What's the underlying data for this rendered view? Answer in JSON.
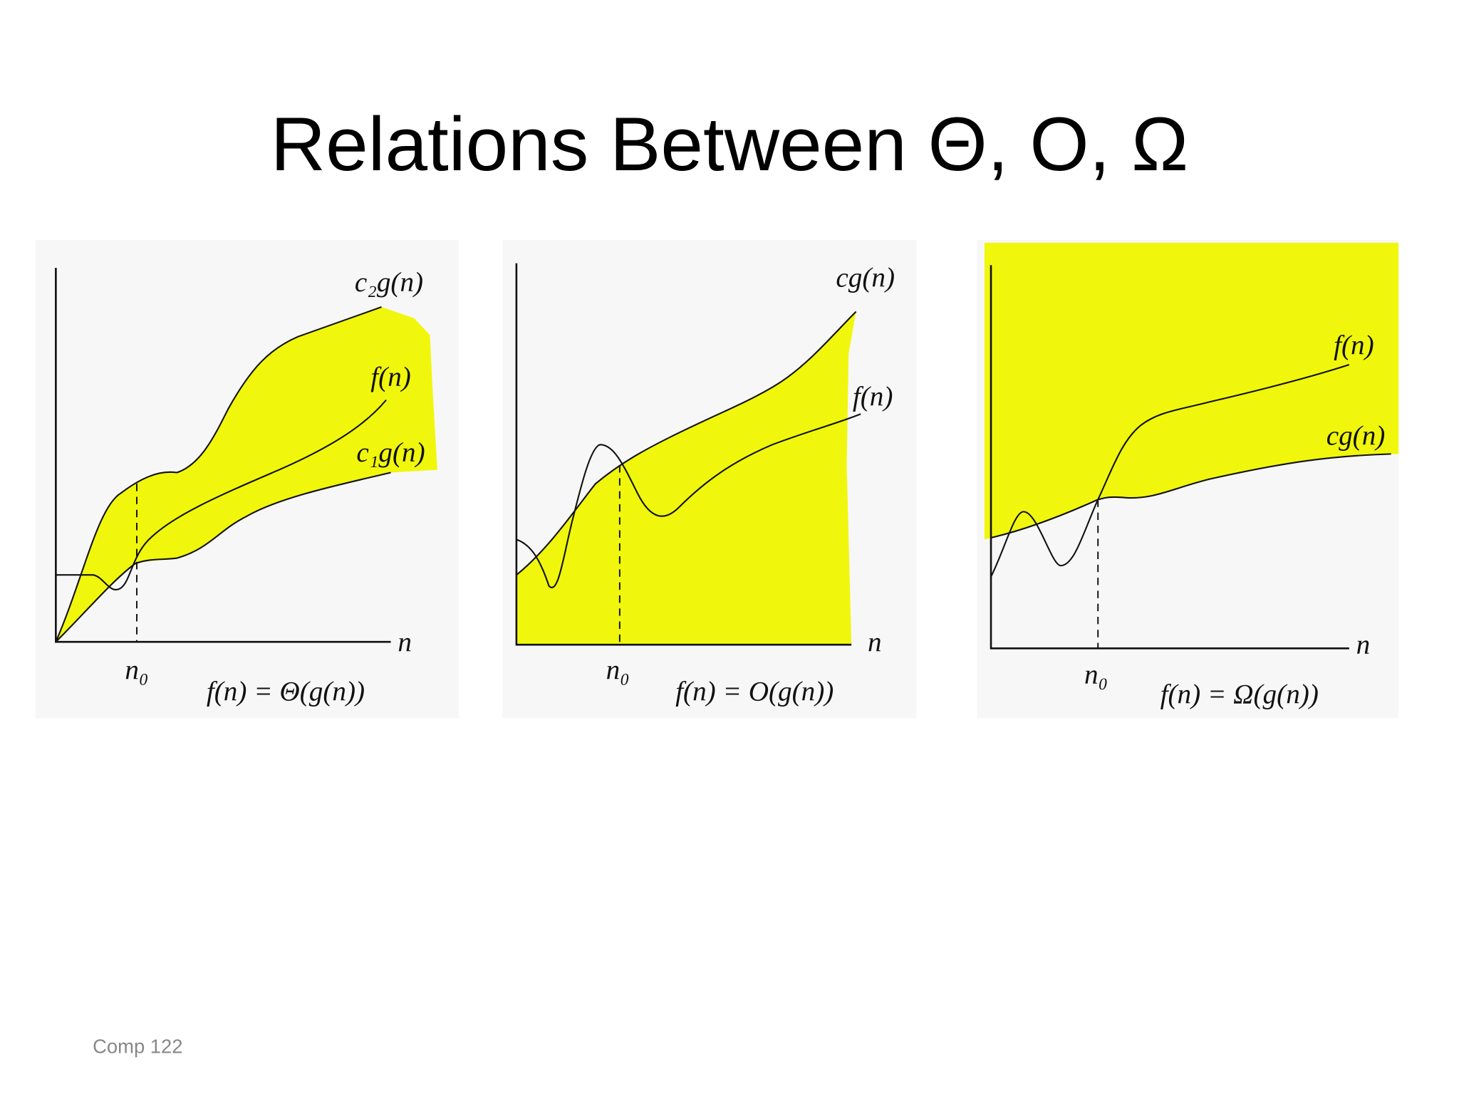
{
  "title": "Relations Between Θ, O, Ω",
  "panels": [
    {
      "curve_labels": [
        "c₂g(n)",
        "f(n)",
        "c₁g(n)"
      ],
      "n0": "n₀",
      "axis_label": "n",
      "caption": "f(n) = Θ(g(n))"
    },
    {
      "curve_labels": [
        "cg(n)",
        "f(n)"
      ],
      "n0": "n₀",
      "axis_label": "n",
      "caption": "f(n) = O(g(n))"
    },
    {
      "curve_labels": [
        "f(n)",
        "cg(n)"
      ],
      "n0": "n₀",
      "axis_label": "n",
      "caption": "f(n) = Ω(g(n))"
    }
  ],
  "footer": "Comp 122"
}
